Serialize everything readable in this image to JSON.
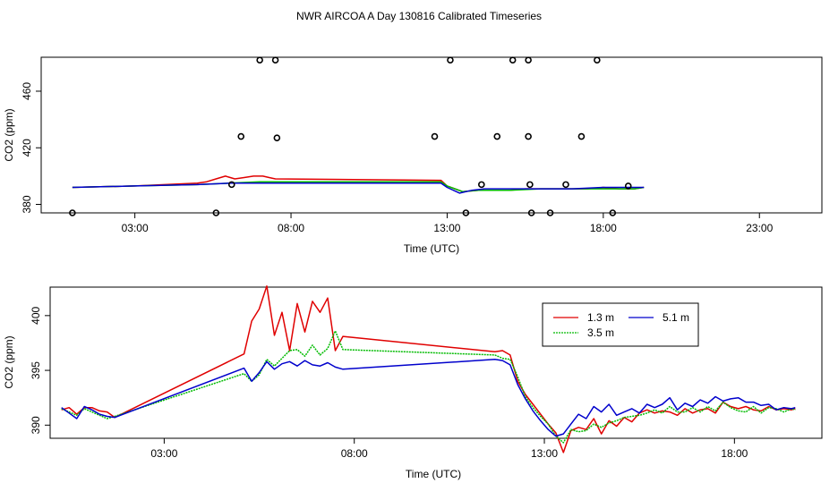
{
  "title": "NWR AIRCOA A  Day 130816  Calibrated Timeseries",
  "colors": {
    "h1": "#e00000",
    "h35": "#00bb00",
    "h51": "#0000cc",
    "axis": "#000000"
  },
  "chart_data": [
    {
      "type": "scatter",
      "ylabel": "CO2 (ppm)",
      "xlabel": "Time (UTC)",
      "xlim": [
        0,
        25
      ],
      "ylim": [
        374,
        484
      ],
      "xticks": [
        3,
        8,
        13,
        18,
        23
      ],
      "xtick_labels": [
        "03:00",
        "08:00",
        "13:00",
        "18:00",
        "23:00"
      ],
      "yticks": [
        380,
        420,
        460
      ],
      "ytick_labels": [
        "380",
        "420",
        "460"
      ],
      "points": [
        {
          "x": 1.0,
          "y": 374
        },
        {
          "x": 5.6,
          "y": 374
        },
        {
          "x": 6.4,
          "y": 428
        },
        {
          "x": 6.1,
          "y": 394
        },
        {
          "x": 7.0,
          "y": 482
        },
        {
          "x": 7.5,
          "y": 482
        },
        {
          "x": 7.55,
          "y": 427
        },
        {
          "x": 12.6,
          "y": 428
        },
        {
          "x": 13.1,
          "y": 482
        },
        {
          "x": 13.6,
          "y": 374
        },
        {
          "x": 14.1,
          "y": 394
        },
        {
          "x": 14.6,
          "y": 428
        },
        {
          "x": 15.1,
          "y": 482
        },
        {
          "x": 15.6,
          "y": 482
        },
        {
          "x": 15.6,
          "y": 428
        },
        {
          "x": 15.65,
          "y": 394
        },
        {
          "x": 15.7,
          "y": 374
        },
        {
          "x": 16.3,
          "y": 374
        },
        {
          "x": 16.8,
          "y": 394
        },
        {
          "x": 17.3,
          "y": 428
        },
        {
          "x": 17.8,
          "y": 482
        },
        {
          "x": 18.3,
          "y": 374
        },
        {
          "x": 18.8,
          "y": 393
        }
      ],
      "series": [
        {
          "name": "1.3 m",
          "x": [
            1.0,
            3.0,
            5.0,
            5.3,
            5.6,
            5.9,
            6.2,
            6.5,
            6.8,
            7.1,
            7.3,
            7.5,
            12.8,
            13.0,
            13.5,
            14.0,
            14.5,
            15.0,
            15.5,
            16.0,
            16.5,
            17.0,
            17.5,
            18.0,
            18.5,
            19.0,
            19.3
          ],
          "y": [
            392,
            393,
            395,
            396,
            398,
            400,
            398,
            399,
            400,
            400,
            399,
            398,
            397,
            393,
            389,
            390,
            390,
            390,
            391,
            391,
            391,
            391,
            391,
            392,
            391,
            391,
            392
          ]
        },
        {
          "name": "3.5 m",
          "x": [
            1.0,
            3.0,
            5.0,
            6.0,
            7.0,
            7.5,
            12.8,
            13.0,
            13.5,
            14.0,
            15.0,
            16.0,
            17.0,
            18.0,
            19.0,
            19.3
          ],
          "y": [
            392,
            393,
            394,
            395,
            396,
            396,
            396,
            393,
            389,
            390,
            390,
            391,
            391,
            391,
            391,
            392
          ]
        },
        {
          "name": "5.1 m",
          "x": [
            1.0,
            3.0,
            5.0,
            6.0,
            7.0,
            7.5,
            12.8,
            13.0,
            13.4,
            13.8,
            14.2,
            15.0,
            16.0,
            17.0,
            18.0,
            19.0,
            19.3
          ],
          "y": [
            392,
            393,
            394,
            395,
            395,
            395,
            395,
            392,
            388,
            390,
            391,
            391,
            391,
            391,
            392,
            392,
            392
          ]
        }
      ]
    },
    {
      "type": "line",
      "ylabel": "CO2 (ppm)",
      "xlabel": "Time (UTC)",
      "xlim": [
        0,
        20.3
      ],
      "ylim": [
        388.8,
        402.6
      ],
      "xticks": [
        3,
        8,
        13,
        18
      ],
      "xtick_labels": [
        "03:00",
        "08:00",
        "13:00",
        "18:00"
      ],
      "yticks": [
        390,
        395,
        400
      ],
      "ytick_labels": [
        "390",
        "395",
        "400"
      ],
      "legend": {
        "placement": "top-right",
        "entries": [
          "1.3 m",
          "3.5 m",
          "5.1 m"
        ]
      },
      "series": [
        {
          "name": "1.3 m",
          "color": "h1",
          "x": [
            0.3,
            0.5,
            0.7,
            0.9,
            1.1,
            1.3,
            1.5,
            1.7,
            5.1,
            5.3,
            5.5,
            5.7,
            5.9,
            6.1,
            6.3,
            6.5,
            6.7,
            6.9,
            7.1,
            7.3,
            7.5,
            7.7,
            11.7,
            11.9,
            12.1,
            12.3,
            12.5,
            12.7,
            12.9,
            13.1,
            13.3,
            13.5,
            13.7,
            13.9,
            14.1,
            14.3,
            14.5,
            14.7,
            14.9,
            15.1,
            15.3,
            15.5,
            15.7,
            15.9,
            16.1,
            16.3,
            16.5,
            16.7,
            16.9,
            17.1,
            17.3,
            17.5,
            17.7,
            17.9,
            18.1,
            18.3,
            18.5,
            18.7,
            18.9,
            19.1,
            19.3,
            19.5,
            19.6
          ],
          "y": [
            391.4,
            391.6,
            391.0,
            391.6,
            391.6,
            391.3,
            391.2,
            390.7,
            396.5,
            399.5,
            400.6,
            402.7,
            398.2,
            400.3,
            396.8,
            401.1,
            398.5,
            401.3,
            400.3,
            401.6,
            396.8,
            398.1,
            396.7,
            396.8,
            396.4,
            394.0,
            392.8,
            391.9,
            391.0,
            390.1,
            389.3,
            387.5,
            389.5,
            389.8,
            389.6,
            390.6,
            389.2,
            390.4,
            389.9,
            390.7,
            390.3,
            391.1,
            391.4,
            391.1,
            391.3,
            391.2,
            390.9,
            391.5,
            391.1,
            391.4,
            391.5,
            391.1,
            392.1,
            391.7,
            391.5,
            391.7,
            391.4,
            391.3,
            391.7,
            391.4,
            391.5,
            391.4,
            391.5
          ]
        },
        {
          "name": "3.5 m",
          "color": "h35",
          "x": [
            0.3,
            0.5,
            0.7,
            0.9,
            1.1,
            1.3,
            1.5,
            1.7,
            5.1,
            5.3,
            5.5,
            5.7,
            5.9,
            6.1,
            6.3,
            6.5,
            6.7,
            6.9,
            7.1,
            7.3,
            7.5,
            7.7,
            11.7,
            11.9,
            12.1,
            12.3,
            12.5,
            12.7,
            12.9,
            13.1,
            13.3,
            13.5,
            13.7,
            13.9,
            14.1,
            14.3,
            14.5,
            14.7,
            14.9,
            15.1,
            15.3,
            15.5,
            15.7,
            15.9,
            16.1,
            16.3,
            16.5,
            16.7,
            16.9,
            17.1,
            17.3,
            17.5,
            17.7,
            17.9,
            18.1,
            18.3,
            18.5,
            18.7,
            18.9,
            19.1,
            19.3,
            19.5,
            19.6
          ],
          "y": [
            391.5,
            391.2,
            390.9,
            391.5,
            391.2,
            390.9,
            390.6,
            390.8,
            394.7,
            394.0,
            394.6,
            396.0,
            395.4,
            396.1,
            396.8,
            396.9,
            396.3,
            397.3,
            396.4,
            397.0,
            398.6,
            396.9,
            396.4,
            396.1,
            396.0,
            394.4,
            392.6,
            391.6,
            390.8,
            390.1,
            389.0,
            388.4,
            389.6,
            389.4,
            389.5,
            390.1,
            389.8,
            390.2,
            390.4,
            390.7,
            390.8,
            390.9,
            391.1,
            391.4,
            391.1,
            391.7,
            391.2,
            391.2,
            391.6,
            391.2,
            391.7,
            391.3,
            392.1,
            391.6,
            391.3,
            391.2,
            391.7,
            391.1,
            391.6,
            391.5,
            391.2,
            391.5,
            391.4
          ]
        },
        {
          "name": "5.1 m",
          "color": "h51",
          "x": [
            0.3,
            0.5,
            0.7,
            0.9,
            1.1,
            1.3,
            1.5,
            1.7,
            5.1,
            5.3,
            5.5,
            5.7,
            5.9,
            6.1,
            6.3,
            6.5,
            6.7,
            6.9,
            7.1,
            7.3,
            7.5,
            7.7,
            11.7,
            11.9,
            12.1,
            12.3,
            12.5,
            12.7,
            12.9,
            13.1,
            13.3,
            13.5,
            13.7,
            13.9,
            14.1,
            14.3,
            14.5,
            14.7,
            14.9,
            15.1,
            15.3,
            15.5,
            15.7,
            15.9,
            16.1,
            16.3,
            16.5,
            16.7,
            16.9,
            17.1,
            17.3,
            17.5,
            17.7,
            17.9,
            18.1,
            18.3,
            18.5,
            18.7,
            18.9,
            19.1,
            19.3,
            19.5,
            19.6
          ],
          "y": [
            391.6,
            391.1,
            390.6,
            391.7,
            391.4,
            391.0,
            390.8,
            390.7,
            395.2,
            394.0,
            394.8,
            395.8,
            395.1,
            395.6,
            395.8,
            395.4,
            395.9,
            395.5,
            395.4,
            395.7,
            395.3,
            395.1,
            396.0,
            395.9,
            395.5,
            393.7,
            392.4,
            391.3,
            390.4,
            389.6,
            389.0,
            389.2,
            390.1,
            391.0,
            390.6,
            391.7,
            391.2,
            391.9,
            390.9,
            391.2,
            391.5,
            391.1,
            391.9,
            391.6,
            391.9,
            392.5,
            391.4,
            392.0,
            391.7,
            392.3,
            392.0,
            392.6,
            392.2,
            392.4,
            392.5,
            392.1,
            392.1,
            391.8,
            391.9,
            391.4,
            391.6,
            391.5,
            391.6
          ]
        }
      ]
    }
  ]
}
